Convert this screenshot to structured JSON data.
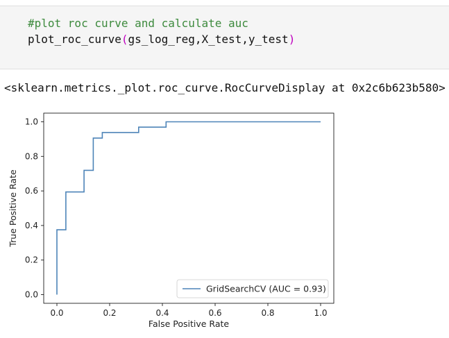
{
  "cell": {
    "comment": "#plot roc curve and calculate auc",
    "call_name": "plot_roc_curve",
    "call_open": "(",
    "call_args": "gs_log_reg,X_test,y_test",
    "call_close": ")",
    "output_text": "<sklearn.metrics._plot.roc_curve.RocCurveDisplay at 0x2c6b623b580>"
  },
  "colors": {
    "line": "#4d84b8",
    "comment": "#3d8a3d",
    "paren": "#c000c0"
  },
  "chart_data": {
    "type": "line",
    "title": "",
    "xlabel": "False Positive Rate",
    "ylabel": "True Positive Rate",
    "xlim": [
      -0.05,
      1.05
    ],
    "ylim": [
      -0.05,
      1.05
    ],
    "xticks": [
      "0.0",
      "0.2",
      "0.4",
      "0.6",
      "0.8",
      "1.0"
    ],
    "yticks": [
      "0.0",
      "0.2",
      "0.4",
      "0.6",
      "0.8",
      "1.0"
    ],
    "grid": false,
    "legend_position": "lower-right",
    "series": [
      {
        "name": "GridSearchCV (AUC = 0.93)",
        "x": [
          0.0,
          0.0,
          0.034,
          0.034,
          0.103,
          0.103,
          0.138,
          0.138,
          0.172,
          0.172,
          0.31,
          0.31,
          0.414,
          0.414,
          1.0
        ],
        "y": [
          0.0,
          0.375,
          0.375,
          0.594,
          0.594,
          0.719,
          0.719,
          0.906,
          0.906,
          0.938,
          0.938,
          0.969,
          0.969,
          1.0,
          1.0
        ]
      }
    ]
  }
}
